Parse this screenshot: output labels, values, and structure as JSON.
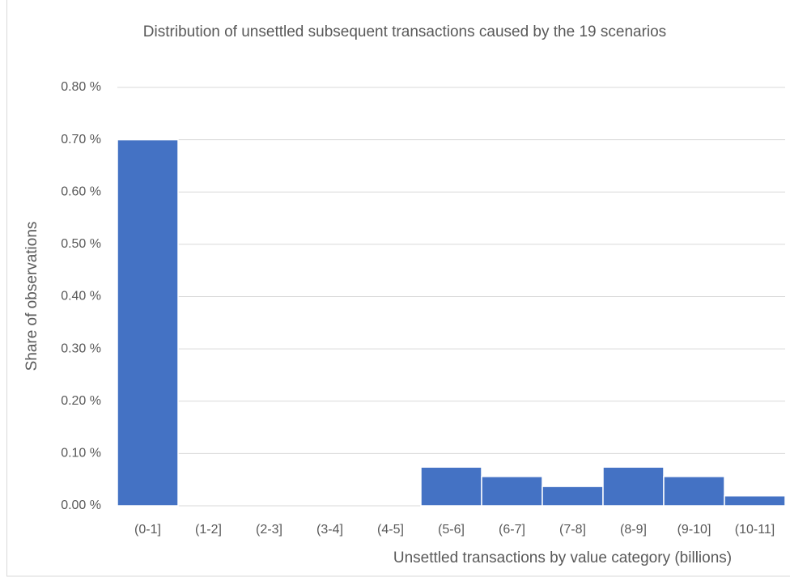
{
  "chart_data": {
    "type": "bar",
    "title": "Distribution of unsettled subsequent transactions caused by the 19 scenarios",
    "x_label": "Unsettled transactions by value category (billions)",
    "y_label": "Share of observations",
    "categories": [
      "(0-1]",
      "(1-2]",
      "(2-3]",
      "(3-4]",
      "(4-5]",
      "(5-6]",
      "(6-7]",
      "(7-8]",
      "(8-9]",
      "(9-10]",
      "(10-11]"
    ],
    "values": [
      0.7,
      0,
      0,
      0,
      0,
      0.074,
      0.056,
      0.037,
      0.074,
      0.056,
      0.019
    ],
    "color": "#4472c4",
    "ylim": [
      0,
      0.8
    ],
    "yticks": [
      {
        "value": 0,
        "label": "0.00 %"
      },
      {
        "value": 0.1,
        "label": "0.10 %"
      },
      {
        "value": 0.2,
        "label": "0.20 %"
      },
      {
        "value": 0.3,
        "label": "0.30 %"
      },
      {
        "value": 0.4,
        "label": "0.40 %"
      },
      {
        "value": 0.5,
        "label": "0.50 %"
      },
      {
        "value": 0.6,
        "label": "0.60 %"
      },
      {
        "value": 0.7,
        "label": "0.70 %"
      },
      {
        "value": 0.8,
        "label": "0.80 %"
      }
    ],
    "grid": true
  }
}
